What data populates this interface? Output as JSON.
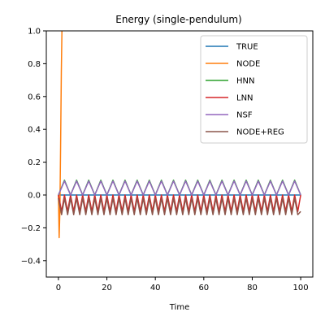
{
  "chart_data": {
    "type": "line",
    "title": "Energy (single-pendulum)",
    "xlabel": "Time",
    "ylabel": "",
    "xlim": [
      -5,
      105
    ],
    "ylim": [
      -0.5,
      1.0
    ],
    "xticks": [
      0,
      20,
      40,
      60,
      80,
      100
    ],
    "xtick_labels": [
      "0",
      "20",
      "40",
      "60",
      "80",
      "100"
    ],
    "yticks": [
      -0.4,
      -0.2,
      0.0,
      0.2,
      0.4,
      0.6,
      0.8,
      1.0
    ],
    "ytick_labels": [
      "−0.4",
      "−0.2",
      "0.0",
      "0.2",
      "0.4",
      "0.6",
      "0.8",
      "1.0"
    ],
    "grid": false,
    "legend_position": "top-right",
    "series": [
      {
        "name": "TRUE",
        "color": "#1f77b4",
        "x": [
          0,
          100
        ],
        "y": [
          0.0,
          0.0
        ]
      },
      {
        "name": "NODE",
        "color": "#ff7f0e",
        "x": [
          0.0,
          0.3,
          0.6,
          0.9,
          1.2,
          1.5
        ],
        "y": [
          0.0,
          -0.26,
          -0.1,
          0.3,
          0.75,
          1.05
        ]
      },
      {
        "name": "HNN",
        "color": "#2ca02c",
        "x": [
          0,
          2.5,
          5,
          7.5,
          10,
          12.5,
          15,
          17.5,
          20,
          22.5,
          25,
          27.5,
          30,
          32.5,
          35,
          37.5,
          40,
          42.5,
          45,
          47.5,
          50,
          52.5,
          55,
          57.5,
          60,
          62.5,
          65,
          67.5,
          70,
          72.5,
          75,
          77.5,
          80,
          82.5,
          85,
          87.5,
          90,
          92.5,
          95,
          97.5,
          100
        ],
        "y": [
          0.0,
          0.09,
          0.0,
          0.09,
          0.0,
          0.09,
          0.0,
          0.09,
          0.0,
          0.09,
          0.0,
          0.09,
          0.0,
          0.09,
          0.0,
          0.09,
          0.0,
          0.09,
          0.0,
          0.09,
          0.0,
          0.09,
          0.0,
          0.09,
          0.0,
          0.09,
          0.0,
          0.09,
          0.0,
          0.09,
          0.0,
          0.09,
          0.0,
          0.09,
          0.0,
          0.09,
          0.0,
          0.09,
          0.0,
          0.09,
          0.0
        ]
      },
      {
        "name": "LNN",
        "color": "#d62728",
        "x": [
          0,
          1.3,
          2.5,
          3.8,
          5,
          6.3,
          7.5,
          8.8,
          10,
          11.3,
          12.5,
          13.8,
          15,
          16.3,
          17.5,
          18.8,
          20,
          21.3,
          22.5,
          23.8,
          25,
          26.3,
          27.5,
          28.8,
          30,
          31.3,
          32.5,
          33.8,
          35,
          36.3,
          37.5,
          38.8,
          40,
          41.3,
          42.5,
          43.8,
          45,
          46.3,
          47.5,
          48.8,
          50,
          51.3,
          52.5,
          53.8,
          55,
          56.3,
          57.5,
          58.8,
          60,
          61.3,
          62.5,
          63.8,
          65,
          66.3,
          67.5,
          68.8,
          70,
          71.3,
          72.5,
          73.8,
          75,
          76.3,
          77.5,
          78.8,
          80,
          81.3,
          82.5,
          83.8,
          85,
          86.3,
          87.5,
          88.8,
          90,
          91.3,
          92.5,
          93.8,
          95,
          96.3,
          97.5,
          98.8,
          100
        ],
        "y": [
          0.0,
          -0.1,
          0.0,
          -0.1,
          0.0,
          -0.1,
          0.0,
          -0.1,
          0.0,
          -0.1,
          0.0,
          -0.1,
          0.0,
          -0.1,
          0.0,
          -0.1,
          0.0,
          -0.1,
          0.0,
          -0.1,
          0.0,
          -0.1,
          0.0,
          -0.1,
          0.0,
          -0.1,
          0.0,
          -0.1,
          0.0,
          -0.1,
          0.0,
          -0.1,
          0.0,
          -0.1,
          0.0,
          -0.1,
          0.0,
          -0.1,
          0.0,
          -0.1,
          0.0,
          -0.1,
          0.0,
          -0.1,
          0.0,
          -0.1,
          0.0,
          -0.1,
          0.0,
          -0.1,
          0.0,
          -0.1,
          0.0,
          -0.1,
          0.0,
          -0.1,
          0.0,
          -0.1,
          0.0,
          -0.1,
          0.0,
          -0.1,
          0.0,
          -0.1,
          0.0,
          -0.1,
          0.0,
          -0.1,
          0.0,
          -0.1,
          0.0,
          -0.1,
          0.0,
          -0.1,
          0.0,
          -0.1,
          0.0,
          -0.1,
          0.0,
          -0.1,
          0.0
        ]
      },
      {
        "name": "NSF",
        "color": "#9467bd",
        "x": [
          0,
          2.5,
          5,
          7.5,
          10,
          12.5,
          15,
          17.5,
          20,
          22.5,
          25,
          27.5,
          30,
          32.5,
          35,
          37.5,
          40,
          42.5,
          45,
          47.5,
          50,
          52.5,
          55,
          57.5,
          60,
          62.5,
          65,
          67.5,
          70,
          72.5,
          75,
          77.5,
          80,
          82.5,
          85,
          87.5,
          90,
          92.5,
          95,
          97.5,
          100
        ],
        "y": [
          0.0,
          0.085,
          0.0,
          0.085,
          0.0,
          0.085,
          0.0,
          0.085,
          0.0,
          0.085,
          0.0,
          0.085,
          0.0,
          0.085,
          0.0,
          0.085,
          0.0,
          0.085,
          0.0,
          0.085,
          0.0,
          0.085,
          0.0,
          0.085,
          0.0,
          0.085,
          0.0,
          0.085,
          0.0,
          0.085,
          0.0,
          0.085,
          0.0,
          0.085,
          0.0,
          0.085,
          0.0,
          0.085,
          0.0,
          0.085,
          0.0
        ]
      },
      {
        "name": "NODE+REG",
        "color": "#8c564b",
        "x": [
          0,
          1.3,
          2.5,
          3.8,
          5,
          6.3,
          7.5,
          8.8,
          10,
          11.3,
          12.5,
          13.8,
          15,
          16.3,
          17.5,
          18.8,
          20,
          21.3,
          22.5,
          23.8,
          25,
          26.3,
          27.5,
          28.8,
          30,
          31.3,
          32.5,
          33.8,
          35,
          36.3,
          37.5,
          38.8,
          40,
          41.3,
          42.5,
          43.8,
          45,
          46.3,
          47.5,
          48.8,
          50,
          51.3,
          52.5,
          53.8,
          55,
          56.3,
          57.5,
          58.8,
          60,
          61.3,
          62.5,
          63.8,
          65,
          66.3,
          67.5,
          68.8,
          70,
          71.3,
          72.5,
          73.8,
          75,
          76.3,
          77.5,
          78.8,
          80,
          81.3,
          82.5,
          83.8,
          85,
          86.3,
          87.5,
          88.8,
          90,
          91.3,
          92.5,
          93.8,
          95,
          96.3,
          97.5,
          98.8,
          100
        ],
        "y": [
          -0.02,
          -0.12,
          -0.02,
          -0.12,
          -0.02,
          -0.12,
          -0.02,
          -0.12,
          -0.02,
          -0.12,
          -0.02,
          -0.12,
          -0.02,
          -0.12,
          -0.02,
          -0.12,
          -0.02,
          -0.12,
          -0.02,
          -0.12,
          -0.02,
          -0.12,
          -0.02,
          -0.12,
          -0.02,
          -0.12,
          -0.02,
          -0.12,
          -0.02,
          -0.12,
          -0.02,
          -0.12,
          -0.02,
          -0.12,
          -0.02,
          -0.12,
          -0.02,
          -0.12,
          -0.02,
          -0.12,
          -0.02,
          -0.12,
          -0.02,
          -0.12,
          -0.02,
          -0.12,
          -0.02,
          -0.12,
          -0.02,
          -0.12,
          -0.02,
          -0.12,
          -0.02,
          -0.12,
          -0.02,
          -0.12,
          -0.02,
          -0.12,
          -0.02,
          -0.12,
          -0.02,
          -0.12,
          -0.02,
          -0.12,
          -0.02,
          -0.12,
          -0.02,
          -0.12,
          -0.02,
          -0.12,
          -0.02,
          -0.12,
          -0.02,
          -0.12,
          -0.02,
          -0.12,
          -0.02,
          -0.12,
          -0.02,
          -0.12,
          -0.1
        ]
      }
    ]
  }
}
